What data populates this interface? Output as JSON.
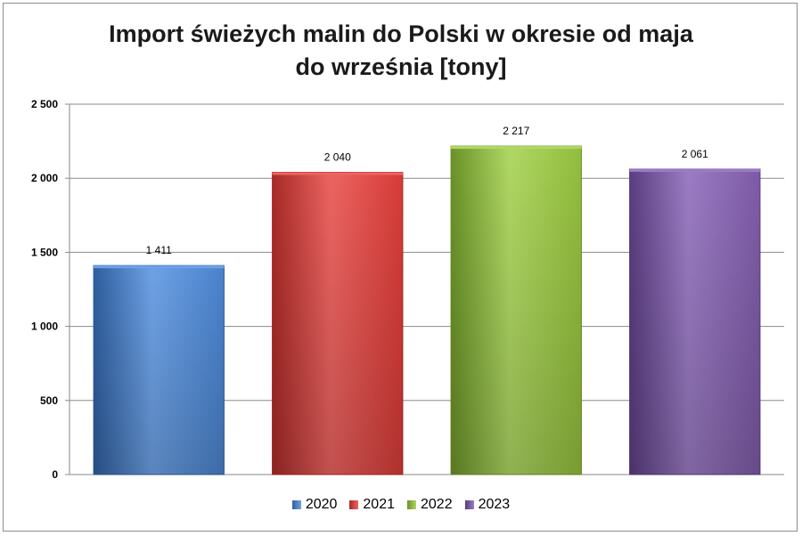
{
  "chart_data": {
    "type": "bar",
    "title_line1": "Import świeżych malin do Polski w okresie od maja",
    "title_line2": "do września [tony]",
    "xlabel": "",
    "ylabel": "",
    "ylim": [
      0,
      2500
    ],
    "y_ticks": [
      0,
      500,
      1000,
      1500,
      2000,
      2500
    ],
    "y_tick_labels": [
      "0",
      "500",
      "1 000",
      "1 500",
      "2 000",
      "2 500"
    ],
    "grid": true,
    "legend_position": "bottom",
    "categories": [
      "2020",
      "2021",
      "2022",
      "2023"
    ],
    "values": [
      1411,
      2040,
      2217,
      2061
    ],
    "data_labels": [
      "1 411",
      "2 040",
      "2 217",
      "2 061"
    ],
    "colors": [
      "#4a82cc",
      "#d63b37",
      "#92bd3c",
      "#7d5aa6"
    ],
    "colors_light": [
      "#6ea2e6",
      "#ec6461",
      "#b0d864",
      "#9b7cc4"
    ],
    "colors_dark": [
      "#2f5e9e",
      "#a82a27",
      "#6a9228",
      "#5a3d80"
    ]
  }
}
